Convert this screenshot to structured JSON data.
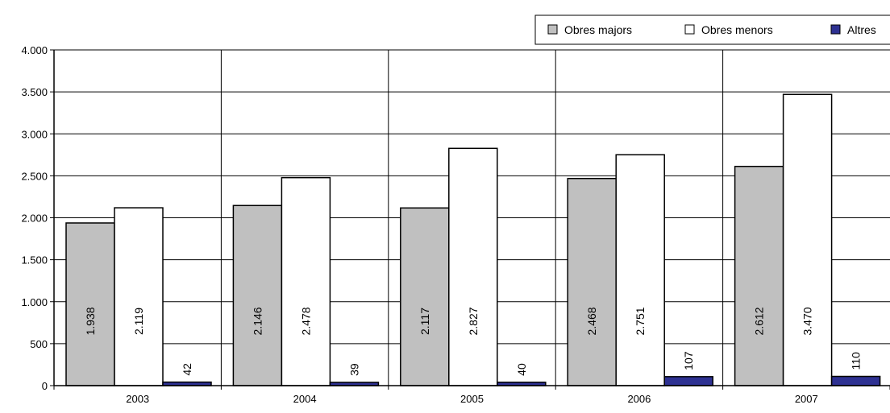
{
  "chart_data": {
    "type": "bar",
    "categories": [
      "2003",
      "2004",
      "2005",
      "2006",
      "2007"
    ],
    "series": [
      {
        "name": "Obres majors",
        "color": "#c0c0c0",
        "values": [
          1938,
          2146,
          2117,
          2468,
          2612
        ],
        "labels": [
          "1.938",
          "2.146",
          "2.117",
          "2.468",
          "2.612"
        ]
      },
      {
        "name": "Obres menors",
        "color": "#ffffff",
        "values": [
          2119,
          2478,
          2827,
          2751,
          3470
        ],
        "labels": [
          "2.119",
          "2.478",
          "2.827",
          "2.751",
          "3.470"
        ]
      },
      {
        "name": "Altres",
        "color": "#2e3192",
        "values": [
          42,
          39,
          40,
          107,
          110
        ],
        "labels": [
          "42",
          "39",
          "40",
          "107",
          "110"
        ]
      }
    ],
    "ylim": [
      0,
      4000
    ],
    "yticks": [
      0,
      500,
      1000,
      1500,
      2000,
      2500,
      3000,
      3500,
      4000
    ],
    "ytick_labels": [
      "0",
      "500",
      "1.000",
      "1.500",
      "2.000",
      "2.500",
      "3.000",
      "3.500",
      "4.000"
    ],
    "grid": true,
    "legend_position": "top-right"
  }
}
